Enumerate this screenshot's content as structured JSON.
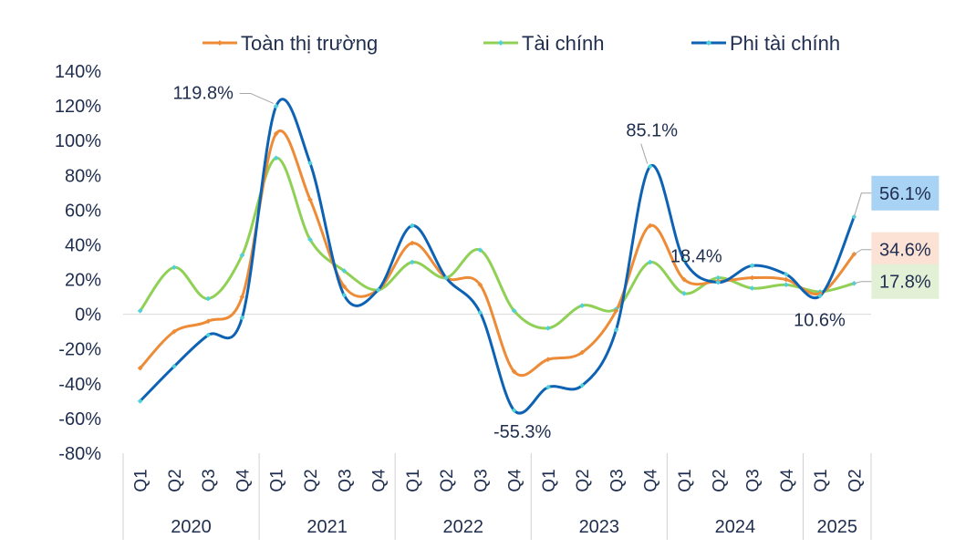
{
  "chart_data": {
    "type": "line",
    "categories": [
      "Q1",
      "Q2",
      "Q3",
      "Q4",
      "Q1",
      "Q2",
      "Q3",
      "Q4",
      "Q1",
      "Q2",
      "Q3",
      "Q4",
      "Q1",
      "Q2",
      "Q3",
      "Q4",
      "Q1",
      "Q2",
      "Q3",
      "Q4",
      "Q1",
      "Q2"
    ],
    "groups": [
      {
        "label": "2020",
        "count": 4
      },
      {
        "label": "2021",
        "count": 4
      },
      {
        "label": "2022",
        "count": 4
      },
      {
        "label": "2023",
        "count": 4
      },
      {
        "label": "2024",
        "count": 4
      },
      {
        "label": "2025",
        "count": 2
      }
    ],
    "ylim": [
      -80,
      140
    ],
    "yticks": [
      -80,
      -60,
      -40,
      -20,
      0,
      20,
      40,
      60,
      80,
      100,
      120,
      140
    ],
    "ytick_labels": [
      "-80%",
      "-60%",
      "-40%",
      "-20%",
      "0%",
      "20%",
      "40%",
      "60%",
      "80%",
      "100%",
      "120%",
      "140%"
    ],
    "legend_position": "top",
    "series": [
      {
        "name": "Toàn thị trường",
        "color": "#ed8b36",
        "values": [
          -31,
          -10,
          -4,
          10,
          104,
          66,
          16,
          14,
          41,
          21,
          17,
          -33,
          -26,
          -22,
          2,
          51,
          20,
          19,
          21,
          20,
          12,
          34.6
        ]
      },
      {
        "name": "Tài chính",
        "color": "#8fd055",
        "values": [
          2,
          27,
          9,
          34,
          90,
          43,
          25,
          14,
          30,
          21,
          37,
          2,
          -8,
          5,
          3,
          30,
          12,
          21,
          15,
          17,
          13,
          17.8
        ]
      },
      {
        "name": "Phi tài chính",
        "color": "#0d62b4",
        "values": [
          -50,
          -30,
          -12,
          -2,
          119.8,
          87,
          11,
          14,
          51,
          21,
          1,
          -55.3,
          -42,
          -41,
          -9,
          85.1,
          31,
          18.4,
          28,
          23,
          10.6,
          56.1
        ]
      }
    ],
    "annotations": [
      {
        "text": "119.8%",
        "series": 2,
        "index": 4
      },
      {
        "text": "85.1%",
        "series": 2,
        "index": 15
      },
      {
        "text": "-55.3%",
        "series": 2,
        "index": 11
      },
      {
        "text": "18.4%",
        "series": 2,
        "index": 17
      },
      {
        "text": "10.6%",
        "series": 2,
        "index": 20
      },
      {
        "text": "56.1%",
        "series": 2,
        "index": 21,
        "box": "#a9d3f4"
      },
      {
        "text": "34.6%",
        "series": 0,
        "index": 21,
        "box": "#fbe2d5"
      },
      {
        "text": "17.8%",
        "series": 1,
        "index": 21,
        "box": "#e2f0d6"
      }
    ]
  }
}
